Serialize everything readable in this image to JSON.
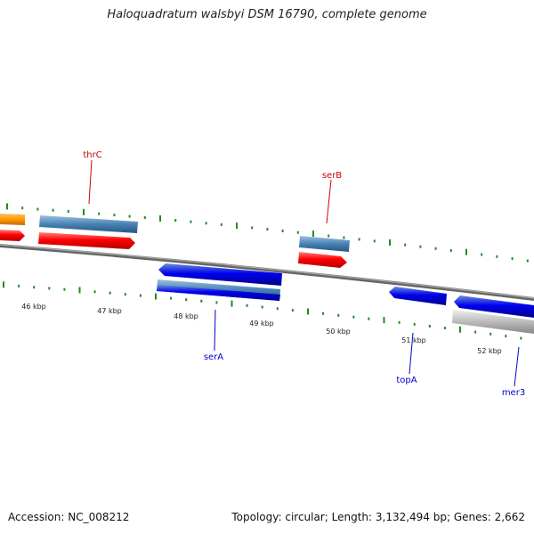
{
  "title": "Haloquadratum walsbyi DSM 16790, complete genome",
  "footer": {
    "accession": "Accession: NC_008212",
    "summary": "Topology: circular; Length: 3,132,494 bp; Genes: 2,662"
  },
  "scale_labels": [
    "46 kbp",
    "47 kbp",
    "48 kbp",
    "49 kbp",
    "50 kbp",
    "51 kbp",
    "52 kbp"
  ],
  "gene_labels": [
    {
      "name": "thrC",
      "color": "#cc0000"
    },
    {
      "name": "serB",
      "color": "#cc0000"
    },
    {
      "name": "serA",
      "color": "#0000cc"
    },
    {
      "name": "topA",
      "color": "#0000cc"
    },
    {
      "name": "mer3",
      "color": "#0000cc"
    }
  ],
  "colors": {
    "forward_cds": "#ff0000",
    "reverse_cds": "#0000ee",
    "gene_steelblue": "#4682b4",
    "other": "#ff9900",
    "pseudo_gray": "#bbbbbb",
    "tick_green": "#228b22",
    "backbone": "#888888"
  }
}
